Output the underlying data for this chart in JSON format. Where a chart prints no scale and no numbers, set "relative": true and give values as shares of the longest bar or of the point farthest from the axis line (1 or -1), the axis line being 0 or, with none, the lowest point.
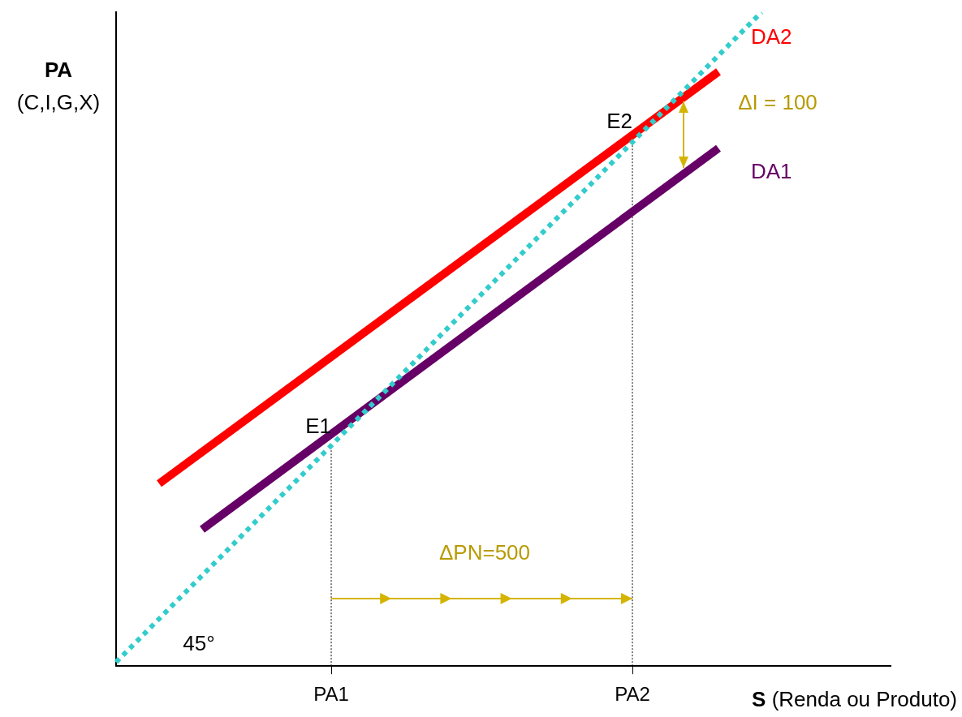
{
  "chart_data": {
    "type": "line",
    "relative": true,
    "xlabel": "S (Renda ou Produto)",
    "ylabel": "PA (C,I,G,X)",
    "grid": false,
    "legend": false,
    "marker": "none",
    "categories": [
      null,
      null,
      null,
      null,
      null,
      "PA1",
      null,
      null,
      null,
      null,
      null,
      null,
      "PA2",
      null,
      null,
      null,
      null,
      null,
      null
    ],
    "series": [
      {
        "color": "#33cccc",
        "values": [
          0.006,
          null,
          null,
          null,
          null,
          null,
          null,
          null,
          null,
          null,
          null,
          null,
          null,
          null,
          null,
          1,
          null,
          null,
          null
        ],
        "line_style": "dotted"
      },
      {
        "name": "DA2",
        "color": "#ff0000",
        "values": [
          null,
          0.279,
          null,
          null,
          null,
          null,
          null,
          null,
          null,
          null,
          null,
          null,
          null,
          null,
          0.909,
          null,
          null,
          null,
          null
        ]
      },
      {
        "name": "DA1",
        "color": "#660066",
        "values": [
          null,
          null,
          0.209,
          null,
          null,
          null,
          null,
          null,
          null,
          null,
          null,
          null,
          null,
          null,
          0.792,
          null,
          null,
          null,
          null
        ]
      }
    ],
    "ref_lines": [
      {
        "axis": "x",
        "value": "PA1",
        "color": "#000000",
        "line_style": "dotted"
      },
      {
        "axis": "x",
        "value": "PA2",
        "color": "#000000",
        "line_style": "dotted"
      }
    ],
    "annotations": [
      "ΔI = 100",
      "ΔPN=500",
      {
        "text": "E1",
        "x": "PA1",
        "y": 0.338
      },
      {
        "text": "E2",
        "x": "PA2",
        "y": 0.804
      },
      "45°"
    ]
  }
}
